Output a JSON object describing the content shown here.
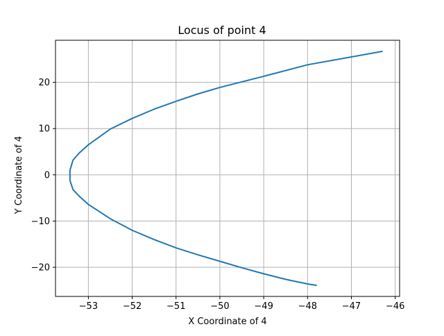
{
  "chart_data": {
    "type": "line",
    "title": "Locus of point 4",
    "xlabel": "X Coordinate of 4",
    "ylabel": "Y Coordinate of 4",
    "xlim": [
      -53.75,
      -45.9
    ],
    "ylim": [
      -26.3,
      29.1
    ],
    "x_ticks": [
      -53,
      -52,
      -51,
      -50,
      -49,
      -48,
      -47,
      -46
    ],
    "y_ticks": [
      -20,
      -10,
      0,
      10,
      20
    ],
    "x_tick_labels": [
      "−53",
      "−52",
      "−51",
      "−50",
      "−49",
      "−48",
      "−47",
      "−46"
    ],
    "y_tick_labels": [
      "−20",
      "−10",
      "0",
      "10",
      "20"
    ],
    "grid": true,
    "series": [
      {
        "color": "#1f77b4",
        "x": [
          -46.3,
          -47.0,
          -48.0,
          -49.0,
          -50.0,
          -50.5,
          -51.0,
          -51.5,
          -52.0,
          -52.5,
          -53.0,
          -53.2,
          -53.35,
          -53.42,
          -53.42,
          -53.35,
          -53.2,
          -53.0,
          -52.5,
          -52.0,
          -51.5,
          -51.0,
          -50.5,
          -50.0,
          -49.5,
          -49.0,
          -48.5,
          -48.0,
          -47.8
        ],
        "y": [
          26.7,
          25.5,
          23.8,
          21.3,
          18.9,
          17.5,
          15.9,
          14.2,
          12.2,
          9.9,
          6.5,
          4.8,
          3.2,
          1.0,
          -1.2,
          -3.2,
          -4.7,
          -6.4,
          -9.5,
          -12.0,
          -14.0,
          -15.8,
          -17.3,
          -18.7,
          -20.1,
          -21.4,
          -22.6,
          -23.6,
          -23.9
        ]
      }
    ]
  }
}
